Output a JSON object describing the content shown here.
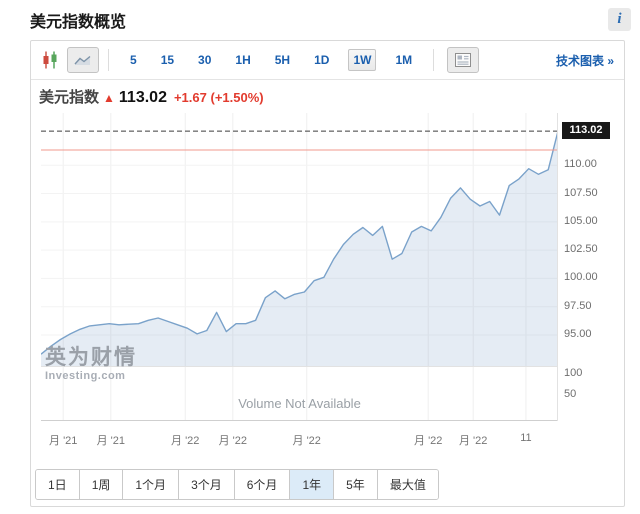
{
  "page": {
    "title": "美元指数概览",
    "info_glyph": "i"
  },
  "toolbar": {
    "chart_type_icons": [
      "candlestick-icon",
      "line-chart-icon"
    ],
    "active_chart_type": "line",
    "intervals": [
      "5",
      "15",
      "30",
      "1H",
      "5H",
      "1D",
      "1W",
      "1M"
    ],
    "active_interval": "1W",
    "layout_icon": "news-layout-icon",
    "tech_link": "技术图表 »"
  },
  "quote": {
    "name": "美元指数",
    "arrow": "▲",
    "price": "113.02",
    "change": "+1.67",
    "change_pct": "(+1.50%)"
  },
  "watermark": {
    "cn": "英为财情",
    "en": "Investing.com"
  },
  "ranges": {
    "items": [
      {
        "key": "1d",
        "label": "1日"
      },
      {
        "key": "1w",
        "label": "1周"
      },
      {
        "key": "1m",
        "label": "1个月"
      },
      {
        "key": "3m",
        "label": "3个月"
      },
      {
        "key": "6m",
        "label": "6个月"
      },
      {
        "key": "1y",
        "label": "1年"
      },
      {
        "key": "5y",
        "label": "5年"
      },
      {
        "key": "max",
        "label": "最大值"
      }
    ],
    "active": "1y"
  },
  "chart_data": {
    "type": "area",
    "title": "美元指数",
    "interval": "1W",
    "range": "1年",
    "x_labels": [
      {
        "label": "月 '21",
        "pos": 0.043
      },
      {
        "label": "月 '21",
        "pos": 0.135
      },
      {
        "label": "月 '22",
        "pos": 0.279
      },
      {
        "label": "月 '22",
        "pos": 0.371
      },
      {
        "label": "月 '22",
        "pos": 0.514
      },
      {
        "label": "月 '22",
        "pos": 0.749
      },
      {
        "label": "月 '22",
        "pos": 0.836
      },
      {
        "label": "11",
        "pos": 0.938
      }
    ],
    "y_ticks": [
      110.0,
      107.5,
      105.0,
      102.5,
      100.0,
      97.5,
      95.0
    ],
    "y_tick_labels": [
      "110.00",
      "107.50",
      "105.00",
      "102.50",
      "100.00",
      "97.50",
      "95.00"
    ],
    "ylim": [
      92.26,
      114.62
    ],
    "values": [
      93.3,
      94.0,
      94.6,
      95.1,
      95.5,
      95.8,
      95.9,
      96.0,
      95.9,
      95.95,
      96.0,
      96.3,
      96.5,
      96.2,
      95.9,
      95.6,
      95.1,
      95.4,
      97.0,
      95.3,
      96.0,
      96.0,
      96.3,
      98.3,
      98.9,
      98.2,
      98.6,
      98.8,
      99.8,
      100.1,
      101.7,
      103.0,
      103.9,
      104.5,
      103.8,
      104.6,
      101.7,
      102.2,
      104.1,
      104.6,
      104.2,
      105.4,
      107.1,
      108.0,
      107.0,
      106.4,
      106.8,
      105.6,
      108.2,
      108.8,
      109.7,
      109.2,
      109.6,
      113.02
    ],
    "last_price": 113.02,
    "last_price_label": "113.02",
    "prev_close": 111.35,
    "volume_ticks": [
      100,
      50
    ],
    "volume_tick_labels": [
      "100",
      "50"
    ],
    "volume_note": "Volume Not Available",
    "grid": true,
    "legend": false,
    "colors": {
      "line": "#7aa2ca",
      "fill": "rgba(137,170,206,0.22)",
      "last_price_line": "#3c3c3c",
      "prev_close_line": "#f0998e",
      "badge_bg": "#181818",
      "up_red": "#e23b2e",
      "link_blue": "#1b5fae"
    }
  }
}
